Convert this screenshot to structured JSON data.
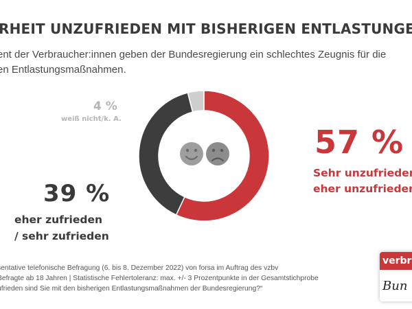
{
  "header": {
    "title": "RHEIT UNZUFRIEDEN MIT BISHERIGEN ENTLASTUNGEN",
    "subtitle_lines": [
      "ent der Verbraucher:innen geben der Bundesregierung ein schlechtes Zeugnis für die",
      "en Entlastungsmaßnahmen."
    ]
  },
  "chart_data": {
    "type": "pie",
    "variant": "donut",
    "categories": [
      "Sehr unzufrieden / eher unzufrieden",
      "eher zufrieden / sehr zufrieden",
      "weiß nicht/k. A."
    ],
    "values": [
      57,
      39,
      4
    ],
    "unit": "%",
    "colors": [
      "#c9373b",
      "#3d3d3d",
      "#cfcfcf"
    ],
    "center_icons": [
      "smiling-face-icon",
      "frowning-face-icon"
    ],
    "labels": {
      "dissatisfied": {
        "pct": "57 %",
        "lines": [
          "Sehr unzufrieden",
          "eher unzufrieden"
        ]
      },
      "satisfied": {
        "pct": "39 %",
        "lines": [
          "eher zufrieden",
          "/ sehr zufrieden"
        ]
      },
      "unknown": {
        "pct": "4 %",
        "text": "weiß nicht/k. A."
      }
    }
  },
  "footer": {
    "lines": [
      "sentative telefonische Befragung (6. bis 8. Dezember 2022) von forsa im Auftrag des vzbv",
      " Befragte ab 18 Jahren | Statistische Fehlertoleranz: max. +/- 3 Prozentpunkte in der Gesamtstichprobe",
      "ufrieden sind Sie mit den bisherigen Entlastungsmaßnahmen der Bundesregierung?“"
    ]
  },
  "logo": {
    "top_text": "verbrau",
    "bottom_text": "Bun"
  }
}
